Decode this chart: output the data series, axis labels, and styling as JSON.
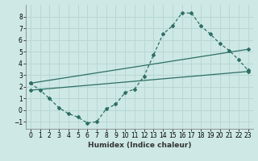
{
  "bg_color": "#cde8e5",
  "grid_color": "#b8d8d5",
  "line_color": "#2d6e65",
  "xlabel": "Humidex (Indice chaleur)",
  "xlim": [
    -0.5,
    23.5
  ],
  "ylim": [
    -1.6,
    9.0
  ],
  "xticks": [
    0,
    1,
    2,
    3,
    4,
    5,
    6,
    7,
    8,
    9,
    10,
    11,
    12,
    13,
    14,
    15,
    16,
    17,
    18,
    19,
    20,
    21,
    22,
    23
  ],
  "yticks": [
    -1,
    0,
    1,
    2,
    3,
    4,
    5,
    6,
    7,
    8
  ],
  "curve1_x": [
    0,
    1,
    2,
    3,
    4,
    5,
    6,
    7,
    8,
    9,
    10,
    11,
    12,
    13,
    14,
    15,
    16,
    17,
    18,
    19,
    20,
    21,
    22,
    23
  ],
  "curve1_y": [
    2.3,
    1.7,
    1.0,
    0.2,
    -0.3,
    -0.6,
    -1.1,
    -1.0,
    0.1,
    0.5,
    1.5,
    1.8,
    2.9,
    4.7,
    6.5,
    7.2,
    8.3,
    8.3,
    7.2,
    6.5,
    5.7,
    5.1,
    4.3,
    3.4
  ],
  "curve2_x": [
    0,
    23
  ],
  "curve2_y": [
    2.3,
    5.2
  ],
  "curve3_x": [
    0,
    23
  ],
  "curve3_y": [
    1.7,
    3.3
  ],
  "xlabel_fontsize": 6.5,
  "tick_fontsize": 5.5
}
